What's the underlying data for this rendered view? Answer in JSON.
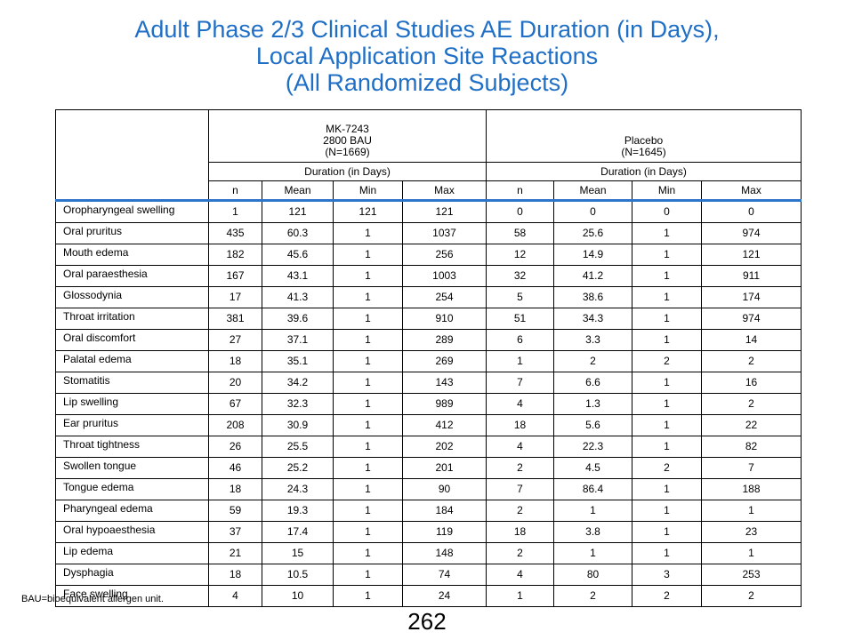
{
  "title": {
    "line1": "Adult Phase 2/3 Clinical Studies AE Duration (in Days),",
    "line2": "Local Application Site Reactions",
    "line3": "(All Randomized Subjects)"
  },
  "groups": [
    {
      "line1": "MK-7243",
      "line2": "2800 BAU",
      "line3": "(N=1669)"
    },
    {
      "line1": "",
      "line2": "Placebo",
      "line3": "(N=1645)"
    }
  ],
  "duration_label": "Duration (in Days)",
  "columns": [
    "n",
    "Mean",
    "Min",
    "Max",
    "n",
    "Mean",
    "Min",
    "Max"
  ],
  "rows": [
    {
      "label": "Oropharyngeal swelling",
      "values": [
        "1",
        "121",
        "121",
        "121",
        "0",
        "0",
        "0",
        "0"
      ]
    },
    {
      "label": "Oral pruritus",
      "values": [
        "435",
        "60.3",
        "1",
        "1037",
        "58",
        "25.6",
        "1",
        "974"
      ]
    },
    {
      "label": "Mouth edema",
      "values": [
        "182",
        "45.6",
        "1",
        "256",
        "12",
        "14.9",
        "1",
        "121"
      ]
    },
    {
      "label": "Oral paraesthesia",
      "values": [
        "167",
        "43.1",
        "1",
        "1003",
        "32",
        "41.2",
        "1",
        "911"
      ]
    },
    {
      "label": "Glossodynia",
      "values": [
        "17",
        "41.3",
        "1",
        "254",
        "5",
        "38.6",
        "1",
        "174"
      ]
    },
    {
      "label": "Throat irritation",
      "values": [
        "381",
        "39.6",
        "1",
        "910",
        "51",
        "34.3",
        "1",
        "974"
      ]
    },
    {
      "label": "Oral discomfort",
      "values": [
        "27",
        "37.1",
        "1",
        "289",
        "6",
        "3.3",
        "1",
        "14"
      ]
    },
    {
      "label": "Palatal edema",
      "values": [
        "18",
        "35.1",
        "1",
        "269",
        "1",
        "2",
        "2",
        "2"
      ]
    },
    {
      "label": "Stomatitis",
      "values": [
        "20",
        "34.2",
        "1",
        "143",
        "7",
        "6.6",
        "1",
        "16"
      ]
    },
    {
      "label": "Lip swelling",
      "values": [
        "67",
        "32.3",
        "1",
        "989",
        "4",
        "1.3",
        "1",
        "2"
      ]
    },
    {
      "label": "Ear pruritus",
      "values": [
        "208",
        "30.9",
        "1",
        "412",
        "18",
        "5.6",
        "1",
        "22"
      ]
    },
    {
      "label": "Throat tightness",
      "values": [
        "26",
        "25.5",
        "1",
        "202",
        "4",
        "22.3",
        "1",
        "82"
      ]
    },
    {
      "label": "Swollen tongue",
      "values": [
        "46",
        "25.2",
        "1",
        "201",
        "2",
        "4.5",
        "2",
        "7"
      ]
    },
    {
      "label": "Tongue edema",
      "values": [
        "18",
        "24.3",
        "1",
        "90",
        "7",
        "86.4",
        "1",
        "188"
      ]
    },
    {
      "label": "Pharyngeal edema",
      "values": [
        "59",
        "19.3",
        "1",
        "184",
        "2",
        "1",
        "1",
        "1"
      ]
    },
    {
      "label": "Oral hypoaesthesia",
      "values": [
        "37",
        "17.4",
        "1",
        "119",
        "18",
        "3.8",
        "1",
        "23"
      ]
    },
    {
      "label": "Lip edema",
      "values": [
        "21",
        "15",
        "1",
        "148",
        "2",
        "1",
        "1",
        "1"
      ]
    },
    {
      "label": "Dysphagia",
      "values": [
        "18",
        "10.5",
        "1",
        "74",
        "4",
        "80",
        "3",
        "253"
      ]
    },
    {
      "label": "Face swelling",
      "values": [
        "4",
        "10",
        "1",
        "24",
        "1",
        "2",
        "2",
        "2"
      ]
    }
  ],
  "footnote": "BAU=bioequivalent  allergen unit.",
  "page_number": "262",
  "colors": {
    "title": "#1f6fc6",
    "header_rule": "#2e75c9"
  }
}
